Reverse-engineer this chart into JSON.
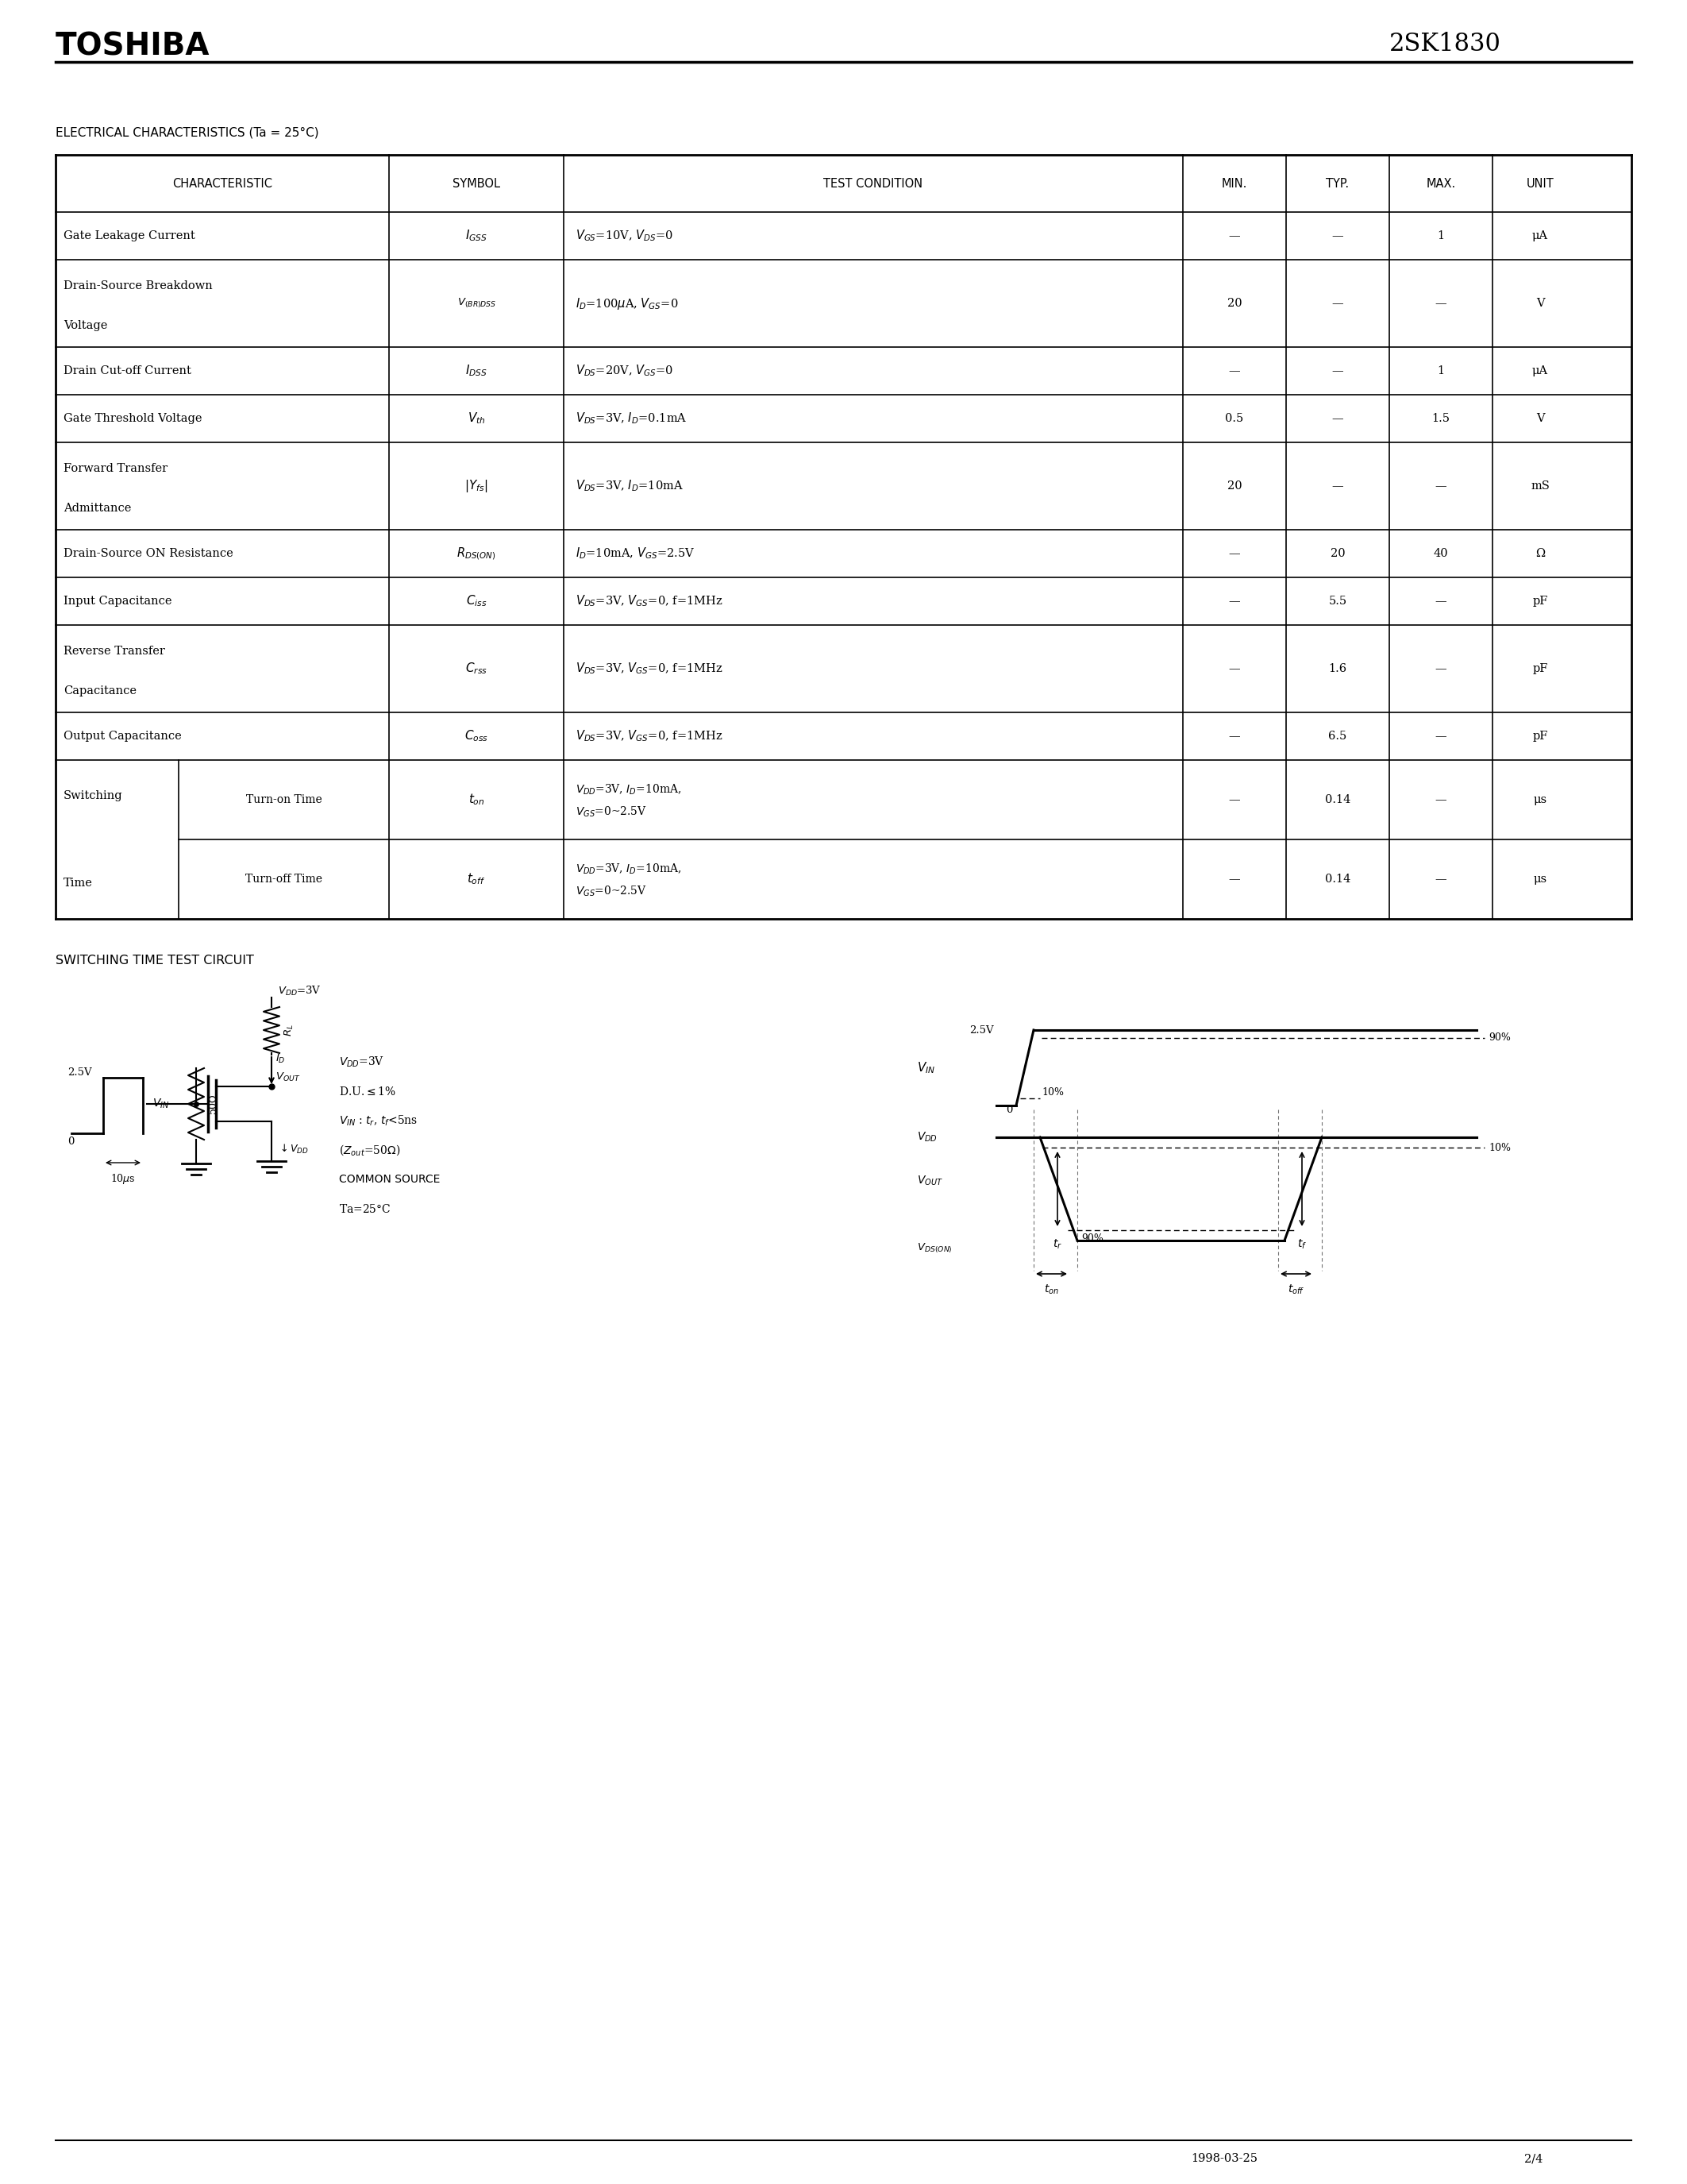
{
  "title_left": "TOSHIBA",
  "title_right": "2SK1830",
  "section_title": "ELECTRICAL CHARACTERISTICS (Ta = 25°C)",
  "table_headers": [
    "CHARACTERISTIC",
    "SYMBOL",
    "TEST CONDITION",
    "MIN.",
    "TYP.",
    "MAX.",
    "UNIT"
  ],
  "switching_title": "SWITCHING TIME TEST CIRCUIT",
  "footer_date": "1998-03-25",
  "footer_page": "2/4",
  "bg_color": "#ffffff",
  "text_color": "#000000"
}
